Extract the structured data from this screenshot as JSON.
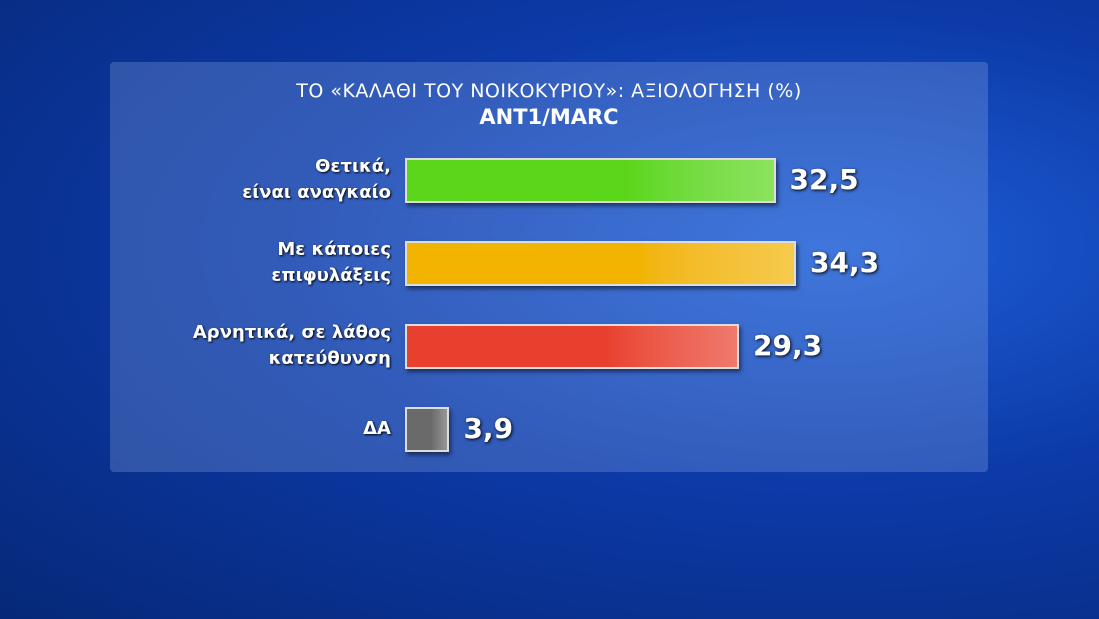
{
  "chart_data": {
    "type": "bar",
    "orientation": "horizontal",
    "title": "ΤΟ «ΚΑΛΑΘΙ ΤΟΥ ΝΟΙΚΟΚΥΡΙΟΥ»: ΑΞΙΟΛΟΓΗΣΗ (%)",
    "subtitle": "ANT1/MARC",
    "categories": [
      "Θετικά,\nείναι αναγκαίο",
      "Με κάποιες\nεπιφυλάξεις",
      "Αρνητικά, σε λάθος\nκατεύθυνση",
      "ΔΑ"
    ],
    "values": [
      32.5,
      34.3,
      29.3,
      3.9
    ],
    "value_labels": [
      "32,5",
      "34,3",
      "29,3",
      "3,9"
    ],
    "colors": [
      "#5cd61a",
      "#f2b400",
      "#e8402e",
      "#6a6a6a"
    ]
  }
}
